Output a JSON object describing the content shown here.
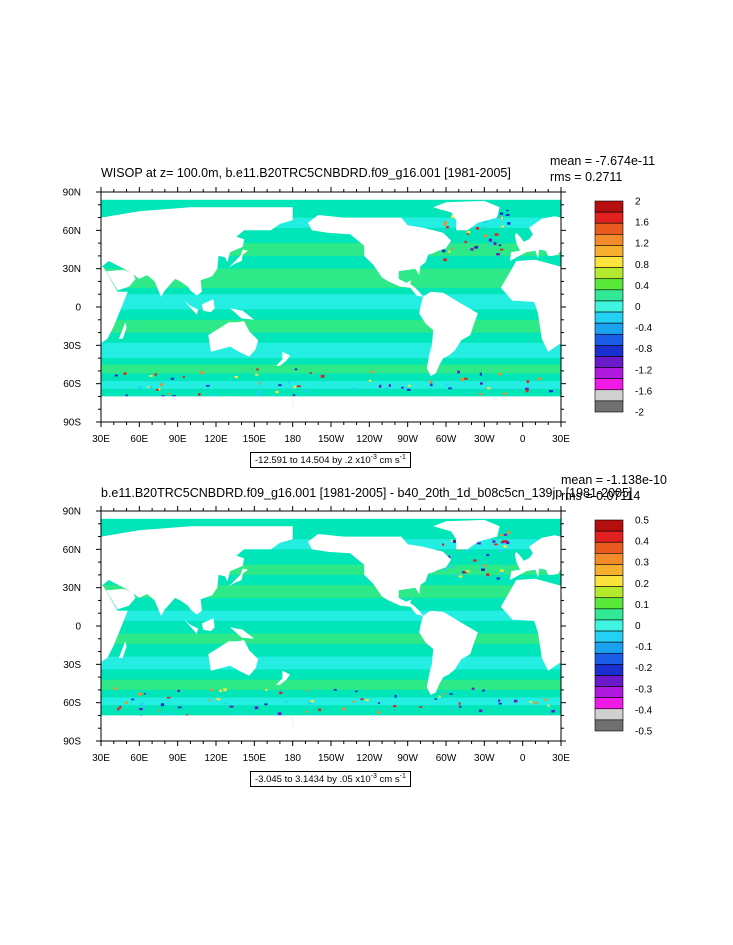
{
  "panels": [
    {
      "title": "WISOP at z= 100.0m, b.e11.B20TRC5CNBDRD.f09_g16.001 [1981-2005]",
      "mean": "mean = -7.674e-11",
      "rms": "rms = 0.2711",
      "contour_info_pre": "-12.591 to 14.504 by .2 x10",
      "contour_info_exp": "-3",
      "contour_info_post": " cm s",
      "contour_info_unit_exp": "-1",
      "colorbar_labels": [
        "2",
        "1.6",
        "1.2",
        "0.8",
        "0.4",
        "0",
        "-0.4",
        "-0.8",
        "-1.2",
        "-1.6",
        "-2"
      ]
    },
    {
      "title": "b.e11.B20TRC5CNBDRD.f09_g16.001 [1981-2005] - b40_20th_1d_b08c5cn_139jp [1981-2005]",
      "mean": "mean = -1.138e-10",
      "rms": "rms = 0.07114",
      "contour_info_pre": "-3.045 to 3.1434 by .05 x10",
      "contour_info_exp": "-3",
      "contour_info_post": " cm s",
      "contour_info_unit_exp": "-1",
      "colorbar_labels": [
        "0.5",
        "0.4",
        "0.3",
        "0.2",
        "0.1",
        "0",
        "-0.1",
        "-0.2",
        "-0.3",
        "-0.4",
        "-0.5"
      ]
    }
  ],
  "lon_labels": [
    "30E",
    "60E",
    "90E",
    "120E",
    "150E",
    "180",
    "150W",
    "120W",
    "90W",
    "60W",
    "30W",
    "0",
    "30E"
  ],
  "lat_labels": [
    "90N",
    "60N",
    "30N",
    "0",
    "30S",
    "60S",
    "90S"
  ],
  "colorbar_colors": [
    "#b50f0f",
    "#e22020",
    "#ea5a1e",
    "#f28c2a",
    "#f7b02e",
    "#fbe33c",
    "#b4ea2e",
    "#5ae83a",
    "#30e895",
    "#40f5e0",
    "#23d1f5",
    "#1aa2f0",
    "#1a5ee8",
    "#1a2fd0",
    "#6a1ac8",
    "#b01ae0",
    "#f01ae6",
    "#d0d0d0",
    "#707070"
  ],
  "colors": {
    "ocean_main": "#00e6b8",
    "ocean_alt": "#30f0f0",
    "ocean_green": "#3cea78",
    "land": "#ffffff"
  },
  "chart_data": [
    {
      "type": "heatmap",
      "title": "WISOP at z= 100.0m, b.e11.B20TRC5CNBDRD.f09_g16.001 [1981-2005]",
      "xlabel": "",
      "ylabel": "",
      "x_ticks": [
        "30E",
        "60E",
        "90E",
        "120E",
        "150E",
        "180",
        "150W",
        "120W",
        "90W",
        "60W",
        "30W",
        "0",
        "30E"
      ],
      "y_ticks": [
        "90N",
        "60N",
        "30N",
        "0",
        "30S",
        "60S",
        "90S"
      ],
      "levels": [
        -2,
        -1.6,
        -1.2,
        -0.8,
        -0.4,
        0,
        0.4,
        0.8,
        1.2,
        1.6,
        2
      ],
      "mean": -7.674e-11,
      "rms": 0.2711,
      "contour_min": -12.591,
      "contour_max": 14.504,
      "contour_interval": 0.2
    },
    {
      "type": "heatmap",
      "title": "b.e11.B20TRC5CNBDRD.f09_g16.001 [1981-2005] - b40_20th_1d_b08c5cn_139jp [1981-2005]",
      "xlabel": "",
      "ylabel": "",
      "x_ticks": [
        "30E",
        "60E",
        "90E",
        "120E",
        "150E",
        "180",
        "150W",
        "120W",
        "90W",
        "60W",
        "30W",
        "0",
        "30E"
      ],
      "y_ticks": [
        "90N",
        "60N",
        "30N",
        "0",
        "30S",
        "60S",
        "90S"
      ],
      "levels": [
        -0.5,
        -0.4,
        -0.3,
        -0.2,
        -0.1,
        0,
        0.1,
        0.2,
        0.3,
        0.4,
        0.5
      ],
      "mean": -1.138e-10,
      "rms": 0.07114,
      "contour_min": -3.045,
      "contour_max": 3.1434,
      "contour_interval": 0.05
    }
  ]
}
